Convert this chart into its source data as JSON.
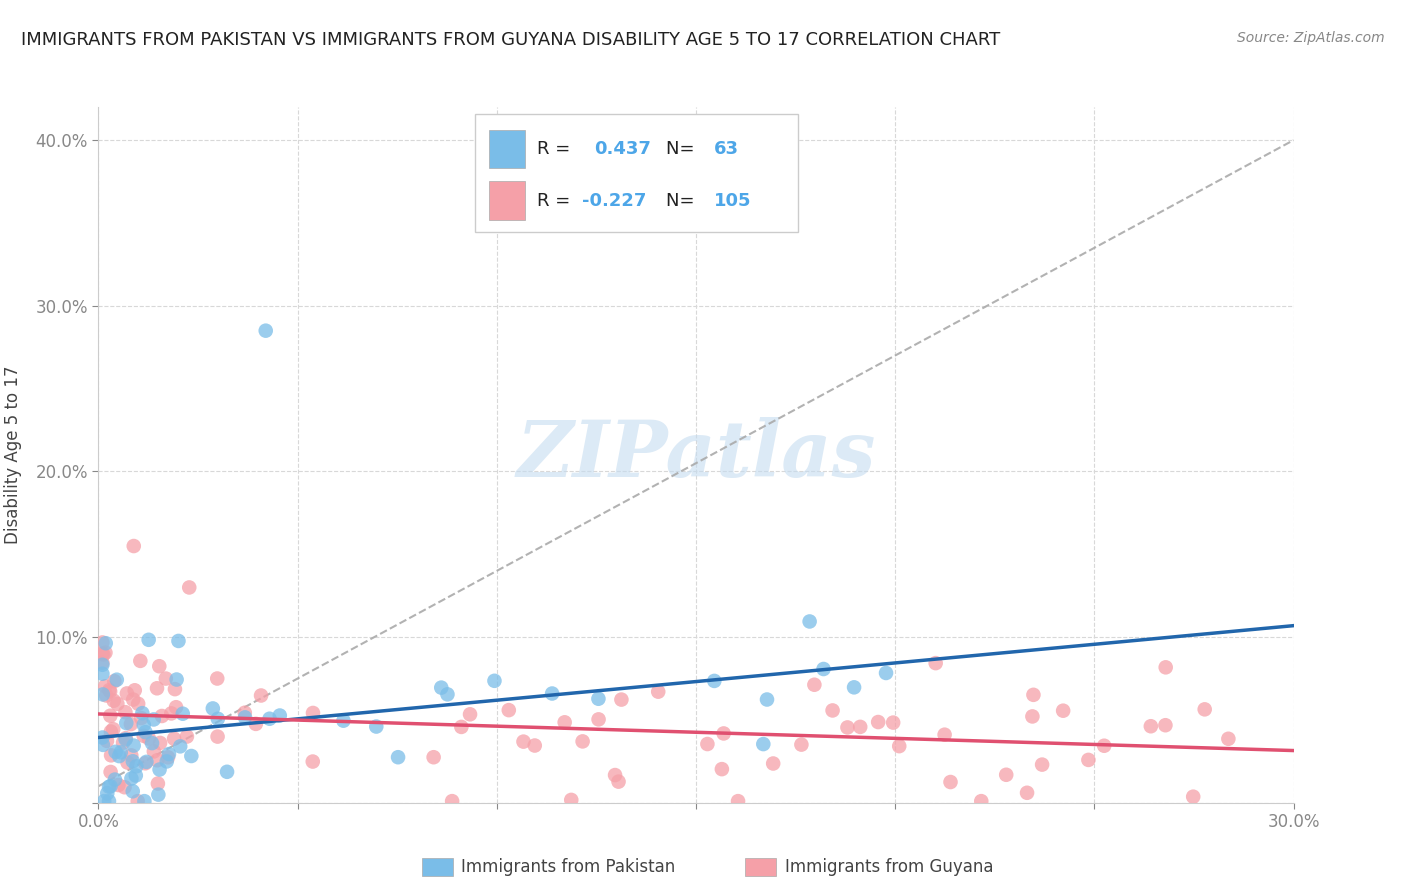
{
  "title": "IMMIGRANTS FROM PAKISTAN VS IMMIGRANTS FROM GUYANA DISABILITY AGE 5 TO 17 CORRELATION CHART",
  "source": "Source: ZipAtlas.com",
  "ylabel": "Disability Age 5 to 17",
  "xlim": [
    0.0,
    0.3
  ],
  "ylim": [
    0.0,
    0.42
  ],
  "pakistan_R": 0.437,
  "pakistan_N": 63,
  "guyana_R": -0.227,
  "guyana_N": 105,
  "pakistan_color": "#7abde8",
  "guyana_color": "#f5a0a8",
  "pakistan_line_color": "#2166ac",
  "guyana_line_color": "#e05070",
  "dashed_line_color": "#aaaaaa",
  "grid_color": "#d8d8d8",
  "watermark": "ZIPatlas",
  "background_color": "#ffffff",
  "tick_color": "#4da6e8",
  "title_color": "#222222",
  "source_color": "#888888"
}
